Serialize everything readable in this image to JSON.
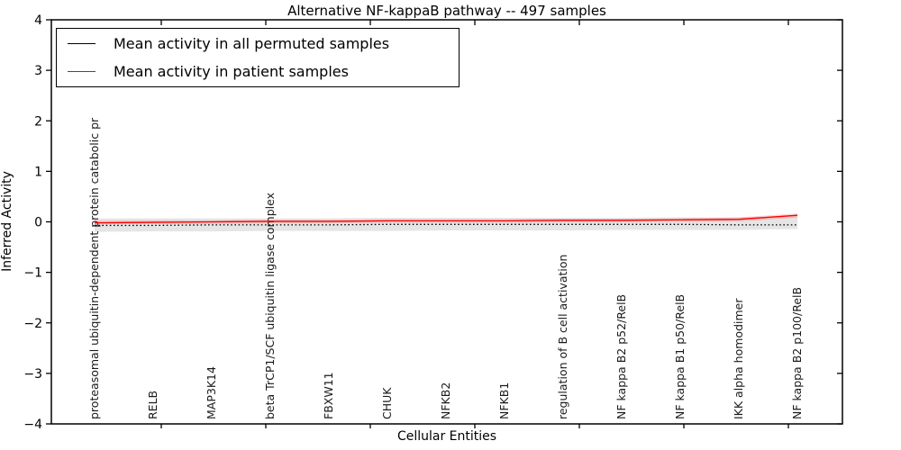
{
  "title": "Alternative NF-kappaB pathway -- 497 samples",
  "legend": {
    "items": [
      {
        "label": "Mean activity in all permuted samples",
        "color": "#000000"
      },
      {
        "label": "Mean activity in patient samples",
        "color": "#ff0000"
      }
    ]
  },
  "chart_data": {
    "type": "line",
    "title": "Alternative NF-kappaB pathway -- 497 samples",
    "xlabel": "Cellular Entities",
    "ylabel": "Inferred Activity",
    "ylim": [
      -4,
      4
    ],
    "ytick_labels": [
      "4",
      "3",
      "2",
      "1",
      "0",
      "−1",
      "−2",
      "−3",
      "−4"
    ],
    "ytick_values": [
      4,
      3,
      2,
      1,
      0,
      -1,
      -2,
      -3,
      -4
    ],
    "grid": false,
    "legend_position": "upper left",
    "categories": [
      "proteasomal ubiquitin-dependent protein catabolic pr",
      "RELB",
      "MAP3K14",
      "beta TrCP1/SCF ubiquitin ligase complex",
      "FBXW11",
      "CHUK",
      "NFKB2",
      "NFKB1",
      "regulation of B cell activation",
      "NF kappa B2 p52/RelB",
      "NF kappa B1 p50/RelB",
      "IKK alpha homodimer",
      "NF kappa B2 p100/RelB"
    ],
    "series": [
      {
        "name": "Mean activity in all permuted samples",
        "color": "#000000",
        "style": "dotted",
        "values": [
          -0.07,
          -0.07,
          -0.06,
          -0.06,
          -0.06,
          -0.05,
          -0.05,
          -0.05,
          -0.05,
          -0.05,
          -0.05,
          -0.06,
          -0.06
        ]
      },
      {
        "name": "Mean activity in patient samples",
        "color": "#ff0000",
        "style": "solid",
        "values": [
          -0.02,
          -0.01,
          0.0,
          0.01,
          0.01,
          0.02,
          0.02,
          0.02,
          0.03,
          0.03,
          0.04,
          0.05,
          0.13
        ]
      }
    ],
    "bands": [
      {
        "name": "permuted-confidence-band",
        "color": "#000000",
        "opacity": 0.1,
        "upper": [
          0.07,
          0.07,
          0.07,
          0.07,
          0.07,
          0.08,
          0.08,
          0.08,
          0.08,
          0.08,
          0.09,
          0.09,
          0.12
        ],
        "lower": [
          -0.2,
          -0.19,
          -0.19,
          -0.18,
          -0.18,
          -0.18,
          -0.17,
          -0.17,
          -0.17,
          -0.16,
          -0.16,
          -0.16,
          -0.14
        ]
      },
      {
        "name": "patient-confidence-band",
        "color": "#ff0000",
        "opacity": 0.16,
        "upper": [
          0.02,
          0.03,
          0.03,
          0.04,
          0.04,
          0.05,
          0.05,
          0.05,
          0.06,
          0.06,
          0.07,
          0.09,
          0.17
        ],
        "lower": [
          -0.05,
          -0.04,
          -0.04,
          -0.03,
          -0.03,
          -0.02,
          -0.02,
          -0.02,
          -0.01,
          -0.01,
          0.0,
          0.01,
          0.08
        ]
      }
    ]
  }
}
